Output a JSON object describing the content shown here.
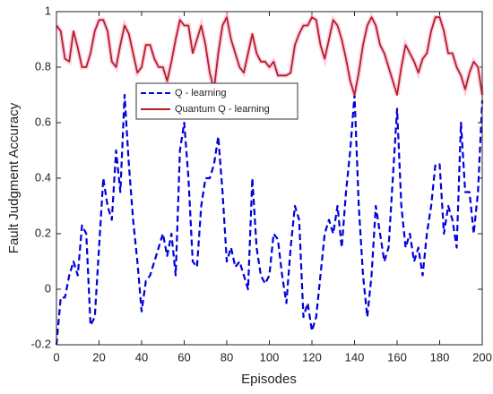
{
  "chart_data": {
    "type": "line",
    "xlabel": "Episodes",
    "ylabel": "Fault Judgment Accuracy",
    "x": [
      0,
      2,
      4,
      6,
      8,
      10,
      12,
      14,
      16,
      18,
      20,
      22,
      24,
      26,
      28,
      30,
      32,
      34,
      36,
      38,
      40,
      42,
      44,
      46,
      48,
      50,
      52,
      54,
      56,
      58,
      60,
      62,
      64,
      66,
      68,
      70,
      72,
      74,
      76,
      78,
      80,
      82,
      84,
      86,
      88,
      90,
      92,
      94,
      96,
      98,
      100,
      102,
      104,
      106,
      108,
      110,
      112,
      114,
      116,
      118,
      120,
      122,
      124,
      126,
      128,
      130,
      132,
      134,
      136,
      138,
      140,
      142,
      144,
      146,
      148,
      150,
      152,
      154,
      156,
      158,
      160,
      162,
      164,
      166,
      168,
      170,
      172,
      174,
      176,
      178,
      180,
      182,
      184,
      186,
      188,
      190,
      192,
      194,
      196,
      198,
      200
    ],
    "series": [
      {
        "name": "Q - learning",
        "color": "#0000dd",
        "dash": true,
        "values": [
          -0.2,
          -0.03,
          -0.03,
          0.05,
          0.1,
          0.05,
          0.23,
          0.2,
          -0.13,
          -0.1,
          0.15,
          0.4,
          0.3,
          0.25,
          0.5,
          0.35,
          0.7,
          0.45,
          0.25,
          0.1,
          -0.08,
          0.03,
          0.05,
          0.1,
          0.15,
          0.2,
          0.12,
          0.2,
          0.05,
          0.5,
          0.6,
          0.4,
          0.1,
          0.08,
          0.3,
          0.4,
          0.4,
          0.45,
          0.55,
          0.35,
          0.1,
          0.15,
          0.08,
          0.1,
          0.05,
          0,
          0.4,
          0.15,
          0.05,
          0.02,
          0.05,
          0.2,
          0.18,
          0.05,
          -0.05,
          0.15,
          0.3,
          0.25,
          -0.1,
          -0.05,
          -0.15,
          -0.1,
          0.05,
          0.2,
          0.25,
          0.2,
          0.3,
          0.15,
          0.35,
          0.5,
          0.7,
          0.3,
          0.05,
          -0.1,
          0.05,
          0.3,
          0.2,
          0.1,
          0.15,
          0.4,
          0.65,
          0.3,
          0.15,
          0.2,
          0.1,
          0.15,
          0.05,
          0.2,
          0.3,
          0.45,
          0.45,
          0.2,
          0.3,
          0.25,
          0.15,
          0.6,
          0.35,
          0.35,
          0.2,
          0.35,
          0.68
        ]
      },
      {
        "name": "Quantum Q - learning",
        "color": "#b22222",
        "dash": false,
        "values": [
          0.95,
          0.93,
          0.83,
          0.82,
          0.93,
          0.87,
          0.8,
          0.8,
          0.85,
          0.93,
          0.97,
          0.97,
          0.93,
          0.82,
          0.8,
          0.88,
          0.95,
          0.92,
          0.85,
          0.78,
          0.8,
          0.88,
          0.88,
          0.83,
          0.8,
          0.8,
          0.75,
          0.82,
          0.9,
          0.97,
          0.95,
          0.95,
          0.85,
          0.9,
          0.95,
          0.88,
          0.78,
          0.72,
          0.85,
          0.95,
          0.98,
          0.9,
          0.85,
          0.8,
          0.78,
          0.85,
          0.92,
          0.85,
          0.82,
          0.82,
          0.8,
          0.82,
          0.77,
          0.77,
          0.77,
          0.78,
          0.88,
          0.92,
          0.95,
          0.95,
          0.98,
          0.97,
          0.88,
          0.83,
          0.9,
          0.97,
          0.95,
          0.9,
          0.83,
          0.75,
          0.7,
          0.78,
          0.88,
          0.95,
          0.98,
          0.95,
          0.88,
          0.85,
          0.8,
          0.75,
          0.7,
          0.8,
          0.88,
          0.85,
          0.82,
          0.78,
          0.83,
          0.85,
          0.93,
          0.98,
          0.98,
          0.93,
          0.85,
          0.85,
          0.8,
          0.77,
          0.72,
          0.78,
          0.82,
          0.8,
          0.7
        ]
      }
    ],
    "xlim": [
      0,
      200
    ],
    "xticks": [
      0,
      20,
      40,
      60,
      80,
      100,
      120,
      140,
      160,
      180,
      200
    ],
    "ylim": [
      -0.2,
      1
    ],
    "yticks": [
      -0.2,
      0,
      0.2,
      0.4,
      0.6,
      0.8,
      1
    ]
  }
}
